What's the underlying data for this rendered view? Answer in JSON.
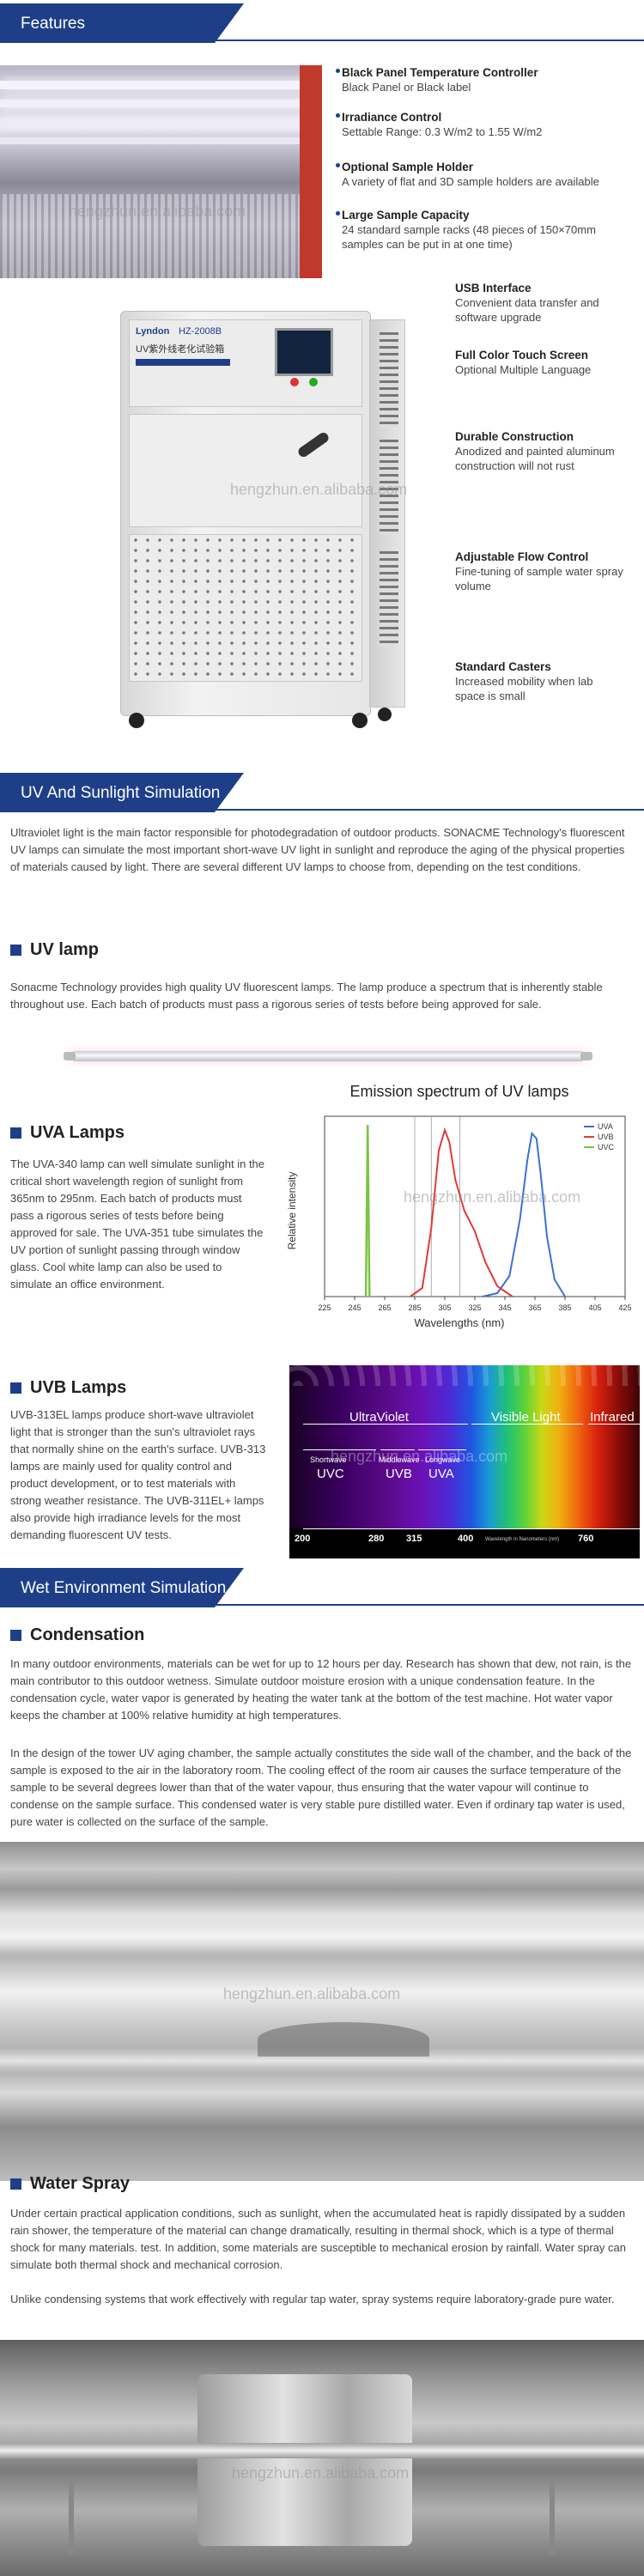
{
  "watermark": "hengzhun.en.alibaba.com",
  "banners": {
    "features": "Features",
    "uv_sunlight": "UV And Sunlight Simulation",
    "wet": "Wet Environment Simulation"
  },
  "features_top": [
    {
      "title": "Black Panel Temperature Controller",
      "desc": "Black Panel or Black label"
    },
    {
      "title": "Irradiance Control",
      "desc": "Settable Range: 0.3 W/m2 to 1.55 W/m2"
    },
    {
      "title": "Optional Sample Holder",
      "desc": "A variety of flat and 3D sample holders are available"
    },
    {
      "title": "Large Sample Capacity",
      "desc": "24 standard sample racks (48 pieces of 150×70mm samples can be put in at one time)"
    }
  ],
  "features_side": [
    {
      "title": "USB Interface",
      "desc": "Convenient data transfer and software upgrade"
    },
    {
      "title": "Full Color Touch Screen",
      "desc": "Optional Multiple Language"
    },
    {
      "title": "Durable Construction",
      "desc": "Anodized and painted aluminum construction will not rust"
    },
    {
      "title": "Adjustable Flow Control",
      "desc": "Fine-tuning of sample water spray volume"
    },
    {
      "title": "Standard Casters",
      "desc": "Increased mobility when lab space is small"
    }
  ],
  "machine": {
    "brand": "Lyndon",
    "model": "HZ-2008B",
    "name_cn": "UV紫外线老化试验箱"
  },
  "uv_intro": "Ultraviolet light is the main factor responsible for photodegradation of outdoor products. SONACME Technology's fluorescent UV lamps can simulate the most important short-wave UV light in sunlight and reproduce the aging of the physical properties of materials caused by light. There are several different UV lamps to choose from, depending on the test conditions.",
  "uv_lamp": {
    "title": "UV lamp",
    "text": "Sonacme Technology provides high quality UV fluorescent lamps. The lamp produce a spectrum that is inherently stable throughout use. Each batch of products must pass a rigorous series of tests before being approved for sale."
  },
  "uva": {
    "title": "UVA Lamps",
    "text": "The UVA-340 lamp can well simulate sunlight in the critical short wavelength region of sunlight from 365nm to 295nm. Each batch of products must pass a rigorous series of tests before being approved for sale. The UVA-351 tube simulates the UV portion of sunlight passing through window glass. Cool white lamp can also be used to simulate an office environment."
  },
  "chart_data": {
    "type": "line",
    "title": "Emission spectrum of UV lamps",
    "xlabel": "Wavelengths (nm)",
    "ylabel": "Relative intensity",
    "xlim": [
      225,
      425
    ],
    "x_ticks": [
      "225",
      "245",
      "265",
      "285",
      "305",
      "325",
      "345",
      "365",
      "385",
      "405",
      "425"
    ],
    "legend_position": "top-right",
    "series": [
      {
        "name": "UVA",
        "color": "#3b6fd6",
        "x": [
          330,
          340,
          348,
          355,
          360,
          363,
          366,
          369,
          373,
          378,
          385
        ],
        "y": [
          0,
          0.02,
          0.12,
          0.45,
          0.8,
          0.95,
          0.92,
          0.7,
          0.35,
          0.1,
          0
        ]
      },
      {
        "name": "UVB",
        "color": "#e03a3a",
        "x": [
          282,
          290,
          296,
          301,
          305,
          308,
          312,
          318,
          325,
          332,
          340,
          350
        ],
        "y": [
          0,
          0.05,
          0.4,
          0.85,
          0.97,
          0.9,
          0.68,
          0.5,
          0.38,
          0.2,
          0.06,
          0
        ]
      },
      {
        "name": "UVC",
        "color": "#7cc443",
        "x": [
          252.5,
          253.7,
          254.9
        ],
        "y": [
          0,
          1.0,
          0
        ]
      }
    ]
  },
  "uvb": {
    "title": "UVB Lamps",
    "text": "UVB-313EL lamps produce short-wave ultraviolet light that is stronger than the sun's ultraviolet rays that normally shine on the earth's surface. UVB-313 lamps are mainly used for quality control and product development, or to test materials with strong weather resistance. The UVB-311EL+ lamps also provide high irradiance levels for the most demanding fluorescent UV tests."
  },
  "spectrum": {
    "ultraviolet": "UltraViolet",
    "visible": "Visible Light",
    "infrared": "Infrared",
    "shortwave": "Shortwave",
    "uvc": "UVC",
    "middlewave": "Middlewave",
    "uvb": "UVB",
    "longwave": "Longwave",
    "uva": "UVA",
    "ticks": [
      "200",
      "280",
      "315",
      "400",
      "760"
    ],
    "wavelength_note": "Wavelength in Nanometers (nm)"
  },
  "condensation": {
    "title": "Condensation",
    "p1": "In many outdoor environments, materials can be wet for up to 12 hours per day. Research has shown that dew, not rain, is the main contributor to this outdoor wetness. Simulate outdoor moisture erosion with a unique condensation feature. In the condensation cycle, water vapor is generated by heating the water tank at the bottom of the test machine. Hot water vapor keeps the chamber at 100% relative humidity at high temperatures.",
    "p2": "In the design of the tower UV aging chamber, the sample actually constitutes the side wall of the chamber, and the back of the sample is exposed to the air in the laboratory room. The cooling effect of the room air causes the surface temperature of the sample to be several degrees lower than that of the water vapour, thus ensuring that the water vapour will continue to condense on the sample surface. This condensed water is very stable pure distilled water. Even if ordinary tap water is used, pure water is collected on the surface of the sample."
  },
  "water_spray": {
    "title": "Water Spray",
    "p1": "Under certain practical application conditions, such as sunlight, when the accumulated heat is rapidly dissipated by a sudden rain shower, the temperature of the material can change dramatically, resulting in thermal shock, which is a type of thermal shock for many materials. test. In addition, some materials are susceptible to mechanical erosion by rainfall. Water spray can simulate both thermal shock and mechanical corrosion.",
    "p2": "Unlike condensing systems that work effectively with regular tap water, spray systems require laboratory-grade pure water."
  }
}
